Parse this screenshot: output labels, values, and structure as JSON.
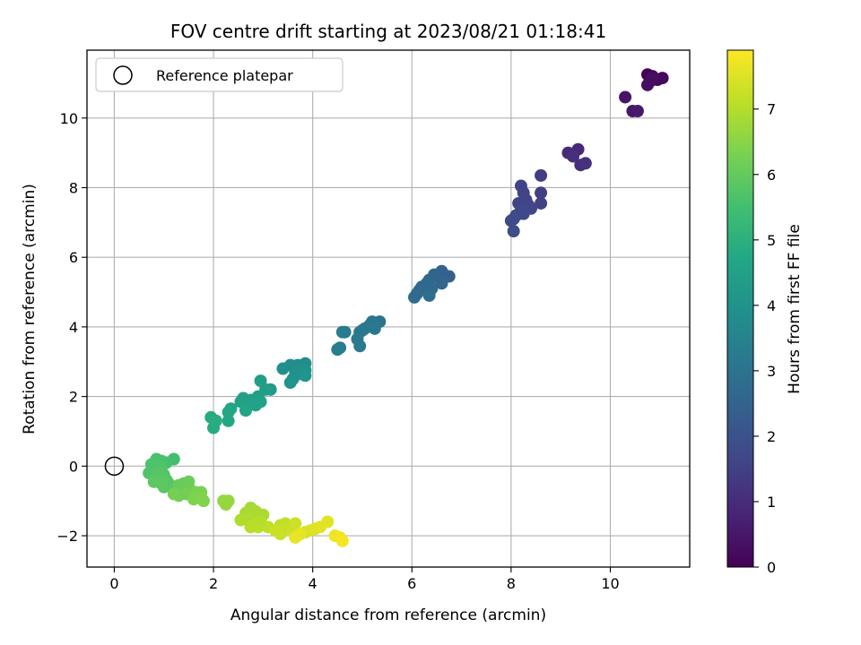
{
  "chart_data": {
    "type": "scatter",
    "title": "FOV centre drift starting at 2023/08/21 01:18:41",
    "xlabel": "Angular distance from reference (arcmin)",
    "ylabel": "Rotation from reference (arcmin)",
    "xlim": [
      -0.55,
      11.6
    ],
    "ylim": [
      -2.9,
      11.95
    ],
    "xticks": [
      0,
      2,
      4,
      6,
      8,
      10
    ],
    "yticks": [
      -2,
      0,
      2,
      4,
      6,
      8,
      10
    ],
    "grid": true,
    "legend": {
      "position": "top-left",
      "entries": [
        "Reference platepar"
      ]
    },
    "reference_point": {
      "x": 0,
      "y": 0,
      "marker": "open-circle"
    },
    "colorbar": {
      "label": "Hours from first FF file",
      "colormap": "viridis",
      "range": [
        0,
        7.9
      ],
      "ticks": [
        0,
        1,
        2,
        3,
        4,
        5,
        6,
        7
      ]
    },
    "series": [
      {
        "points": [
          [
            10.75,
            11.25,
            0.05
          ],
          [
            10.85,
            11.2,
            0.1
          ],
          [
            10.95,
            11.1,
            0.15
          ],
          [
            11.05,
            11.15,
            0.2
          ],
          [
            10.8,
            11.05,
            0.25
          ],
          [
            10.75,
            10.95,
            0.3
          ],
          [
            10.85,
            11.15,
            0.3
          ],
          [
            10.3,
            10.6,
            0.45
          ],
          [
            10.45,
            10.2,
            0.5
          ],
          [
            10.55,
            10.2,
            0.55
          ],
          [
            9.35,
            9.1,
            0.9
          ],
          [
            9.15,
            9.0,
            0.95
          ],
          [
            9.4,
            8.65,
            1.0
          ],
          [
            9.25,
            8.9,
            1.05
          ],
          [
            9.5,
            8.7,
            1.1
          ],
          [
            8.6,
            8.35,
            1.4
          ],
          [
            8.6,
            7.85,
            1.45
          ],
          [
            8.6,
            7.55,
            1.5
          ],
          [
            8.2,
            8.05,
            1.55
          ],
          [
            8.25,
            7.85,
            1.55
          ],
          [
            8.3,
            7.65,
            1.6
          ],
          [
            8.15,
            7.55,
            1.6
          ],
          [
            8.35,
            7.5,
            1.65
          ],
          [
            8.4,
            7.4,
            1.65
          ],
          [
            8.2,
            7.35,
            1.7
          ],
          [
            8.25,
            7.25,
            1.7
          ],
          [
            8.1,
            7.2,
            1.75
          ],
          [
            8.0,
            7.05,
            1.75
          ],
          [
            8.05,
            7.1,
            1.8
          ],
          [
            8.05,
            6.75,
            1.85
          ],
          [
            6.75,
            5.45,
            2.45
          ],
          [
            6.6,
            5.6,
            2.5
          ],
          [
            6.55,
            5.4,
            2.5
          ],
          [
            6.45,
            5.5,
            2.55
          ],
          [
            6.6,
            5.25,
            2.6
          ],
          [
            6.35,
            5.35,
            2.6
          ],
          [
            6.3,
            5.25,
            2.65
          ],
          [
            6.2,
            5.15,
            2.65
          ],
          [
            6.4,
            5.1,
            2.7
          ],
          [
            6.15,
            5.05,
            2.7
          ],
          [
            6.1,
            4.95,
            2.75
          ],
          [
            6.05,
            4.85,
            2.75
          ],
          [
            6.35,
            4.9,
            2.8
          ],
          [
            5.35,
            4.15,
            3.0
          ],
          [
            5.2,
            4.15,
            3.05
          ],
          [
            5.15,
            4.05,
            3.05
          ],
          [
            5.05,
            3.95,
            3.1
          ],
          [
            4.95,
            3.85,
            3.1
          ],
          [
            5.0,
            3.9,
            3.15
          ],
          [
            5.25,
            3.95,
            3.15
          ],
          [
            4.9,
            3.65,
            3.2
          ],
          [
            4.95,
            3.45,
            3.2
          ],
          [
            4.65,
            3.85,
            3.25
          ],
          [
            4.6,
            3.85,
            3.3
          ],
          [
            4.55,
            3.4,
            3.3
          ],
          [
            4.5,
            3.35,
            3.35
          ],
          [
            3.85,
            2.95,
            3.8
          ],
          [
            3.7,
            2.9,
            3.85
          ],
          [
            3.55,
            2.9,
            3.85
          ],
          [
            3.4,
            2.8,
            3.9
          ],
          [
            3.85,
            2.75,
            3.95
          ],
          [
            3.75,
            2.65,
            3.95
          ],
          [
            3.65,
            2.7,
            4.0
          ],
          [
            3.6,
            2.5,
            4.0
          ],
          [
            3.85,
            2.6,
            4.05
          ],
          [
            3.55,
            2.4,
            4.05
          ],
          [
            3.15,
            2.2,
            4.3
          ],
          [
            3.05,
            2.2,
            4.35
          ],
          [
            2.95,
            2.45,
            4.35
          ],
          [
            2.9,
            2.0,
            4.4
          ],
          [
            2.75,
            1.9,
            4.45
          ],
          [
            2.6,
            1.95,
            4.45
          ],
          [
            2.55,
            1.85,
            4.5
          ],
          [
            2.95,
            1.85,
            4.5
          ],
          [
            2.85,
            1.75,
            4.55
          ],
          [
            2.7,
            1.75,
            4.55
          ],
          [
            2.65,
            1.6,
            4.6
          ],
          [
            2.35,
            1.65,
            4.65
          ],
          [
            2.3,
            1.55,
            4.7
          ],
          [
            2.3,
            1.3,
            4.7
          ],
          [
            1.95,
            1.4,
            4.8
          ],
          [
            2.0,
            1.1,
            4.85
          ],
          [
            2.05,
            1.3,
            4.9
          ],
          [
            1.2,
            0.2,
            5.5
          ],
          [
            1.05,
            0.1,
            5.55
          ],
          [
            0.95,
            0.15,
            5.6
          ],
          [
            0.85,
            0.2,
            5.6
          ],
          [
            0.75,
            0.05,
            5.65
          ],
          [
            0.85,
            -0.05,
            5.65
          ],
          [
            0.7,
            -0.2,
            5.7
          ],
          [
            0.95,
            -0.05,
            5.7
          ],
          [
            1.0,
            -0.25,
            5.75
          ],
          [
            0.85,
            -0.35,
            5.75
          ],
          [
            0.9,
            -0.2,
            5.8
          ],
          [
            1.05,
            -0.4,
            5.8
          ],
          [
            1.1,
            -0.5,
            5.85
          ],
          [
            1.0,
            -0.6,
            5.85
          ],
          [
            0.8,
            -0.45,
            5.9
          ],
          [
            0.95,
            -0.5,
            5.9
          ],
          [
            1.4,
            -0.5,
            6.0
          ],
          [
            1.3,
            -0.55,
            6.05
          ],
          [
            1.5,
            -0.45,
            6.1
          ],
          [
            1.55,
            -0.7,
            6.15
          ],
          [
            1.45,
            -0.8,
            6.2
          ],
          [
            1.3,
            -0.85,
            6.2
          ],
          [
            1.2,
            -0.8,
            6.25
          ],
          [
            1.65,
            -0.75,
            6.3
          ],
          [
            1.75,
            -0.75,
            6.3
          ],
          [
            1.6,
            -0.95,
            6.35
          ],
          [
            1.8,
            -1.0,
            6.4
          ],
          [
            1.75,
            -0.9,
            6.4
          ],
          [
            2.2,
            -1.0,
            6.6
          ],
          [
            2.3,
            -1.0,
            6.65
          ],
          [
            2.25,
            -1.1,
            6.65
          ],
          [
            2.75,
            -1.2,
            6.8
          ],
          [
            2.85,
            -1.3,
            6.85
          ],
          [
            2.65,
            -1.35,
            6.85
          ],
          [
            3.0,
            -1.4,
            6.9
          ],
          [
            2.8,
            -1.45,
            6.9
          ],
          [
            2.7,
            -1.55,
            6.95
          ],
          [
            2.55,
            -1.55,
            6.95
          ],
          [
            2.95,
            -1.6,
            7.0
          ],
          [
            2.85,
            -1.65,
            7.0
          ],
          [
            2.75,
            -1.75,
            7.05
          ],
          [
            2.9,
            -1.75,
            7.05
          ],
          [
            3.1,
            -1.75,
            7.1
          ],
          [
            3.35,
            -1.7,
            7.15
          ],
          [
            3.45,
            -1.65,
            7.15
          ],
          [
            3.5,
            -1.75,
            7.2
          ],
          [
            3.4,
            -1.85,
            7.2
          ],
          [
            3.25,
            -1.85,
            7.25
          ],
          [
            3.35,
            -1.95,
            7.25
          ],
          [
            3.65,
            -1.65,
            7.3
          ],
          [
            3.6,
            -1.85,
            7.3
          ],
          [
            3.85,
            -1.9,
            7.4
          ],
          [
            3.95,
            -1.85,
            7.45
          ],
          [
            4.05,
            -1.8,
            7.5
          ],
          [
            4.15,
            -1.75,
            7.55
          ],
          [
            4.3,
            -1.6,
            7.55
          ],
          [
            3.75,
            -1.95,
            7.6
          ],
          [
            3.65,
            -2.05,
            7.65
          ],
          [
            4.45,
            -2.0,
            7.7
          ],
          [
            4.55,
            -2.05,
            7.75
          ],
          [
            4.6,
            -2.15,
            7.8
          ]
        ]
      }
    ]
  }
}
